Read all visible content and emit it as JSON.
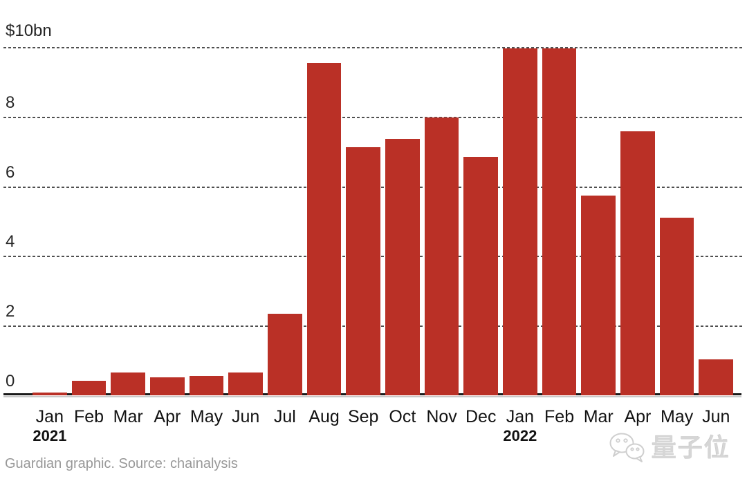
{
  "chart_data": {
    "type": "bar",
    "title": "",
    "y_top_label": "$10bn",
    "ylim": [
      0,
      10
    ],
    "gridline_values": [
      10,
      8,
      6,
      4,
      2
    ],
    "ytick_values": [
      8,
      6,
      4,
      2,
      0
    ],
    "ytick_labels": [
      "8",
      "6",
      "4",
      "2",
      "0"
    ],
    "categories": [
      "Jan",
      "Feb",
      "Mar",
      "Apr",
      "May",
      "Jun",
      "Jul",
      "Aug",
      "Sep",
      "Oct",
      "Nov",
      "Dec",
      "Jan",
      "Feb",
      "Mar",
      "Apr",
      "May",
      "Jun"
    ],
    "category_years": [
      "2021",
      "2021",
      "2021",
      "2021",
      "2021",
      "2021",
      "2021",
      "2021",
      "2021",
      "2021",
      "2021",
      "2021",
      "2022",
      "2022",
      "2022",
      "2022",
      "2022",
      "2022"
    ],
    "year_labels": [
      {
        "index": 0,
        "label": "2021"
      },
      {
        "index": 12,
        "label": "2022"
      }
    ],
    "values": [
      0.08,
      0.42,
      0.66,
      0.52,
      0.56,
      0.66,
      2.35,
      9.55,
      7.12,
      7.37,
      7.98,
      6.85,
      9.97,
      9.97,
      5.73,
      7.57,
      5.09,
      1.04
    ],
    "bar_color": "#ba3026",
    "gridline_color": "#4f4f4f",
    "gridline_style": "dotted",
    "axis_color": "#1a1a1a",
    "legend": "none",
    "grid": "horizontal-only"
  },
  "footer": {
    "source_text": "Guardian graphic. Source: chainalysis"
  },
  "watermark": {
    "text": "量子位",
    "icon": "wechat-chat-bubbles-icon",
    "color": "#d6d6d6"
  }
}
